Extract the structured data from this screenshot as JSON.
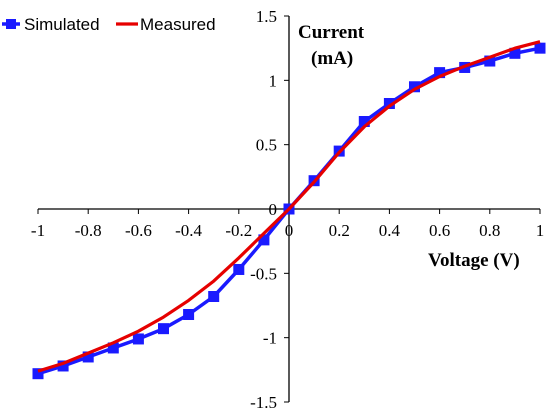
{
  "chart_data": {
    "type": "line",
    "title": "",
    "xlabel": "Voltage (V)",
    "ylabel_line1": "Current",
    "ylabel_line2": "(mA)",
    "xlim": [
      -1,
      1
    ],
    "ylim": [
      -1.5,
      1.5
    ],
    "x_ticks": [
      "-1",
      "-0.8",
      "-0.6",
      "-0.4",
      "-0.2",
      "0",
      "0.2",
      "0.4",
      "0.6",
      "0.8",
      "1"
    ],
    "x_tick_values": [
      -1,
      -0.8,
      -0.6,
      -0.4,
      -0.2,
      0,
      0.2,
      0.4,
      0.6,
      0.8,
      1
    ],
    "y_ticks": [
      "1.5",
      "1",
      "0.5",
      "0",
      "-0.5",
      "-1",
      "-1.5"
    ],
    "y_tick_values": [
      1.5,
      1,
      0.5,
      0,
      -0.5,
      -1,
      -1.5
    ],
    "grid": false,
    "legend_position": "top-left",
    "series": [
      {
        "name": "Simulated",
        "color": "#1a1aff",
        "marker": "square",
        "x": [
          -1,
          -0.9,
          -0.8,
          -0.7,
          -0.6,
          -0.5,
          -0.4,
          -0.3,
          -0.2,
          -0.1,
          0,
          0.1,
          0.2,
          0.3,
          0.4,
          0.5,
          0.6,
          0.7,
          0.8,
          0.9,
          1
        ],
        "y": [
          -1.28,
          -1.22,
          -1.15,
          -1.08,
          -1.01,
          -0.93,
          -0.82,
          -0.68,
          -0.47,
          -0.24,
          0,
          0.22,
          0.45,
          0.68,
          0.82,
          0.95,
          1.06,
          1.1,
          1.15,
          1.21,
          1.25
        ]
      },
      {
        "name": "Measured",
        "color": "#e60000",
        "marker": "none",
        "x": [
          -1,
          -0.9,
          -0.8,
          -0.7,
          -0.6,
          -0.5,
          -0.4,
          -0.3,
          -0.2,
          -0.1,
          0,
          0.1,
          0.2,
          0.3,
          0.4,
          0.5,
          0.6,
          0.7,
          0.8,
          0.9,
          1
        ],
        "y": [
          -1.26,
          -1.2,
          -1.12,
          -1.04,
          -0.95,
          -0.84,
          -0.71,
          -0.56,
          -0.38,
          -0.19,
          0,
          0.21,
          0.44,
          0.64,
          0.8,
          0.93,
          1.03,
          1.11,
          1.18,
          1.25,
          1.3
        ]
      }
    ]
  }
}
